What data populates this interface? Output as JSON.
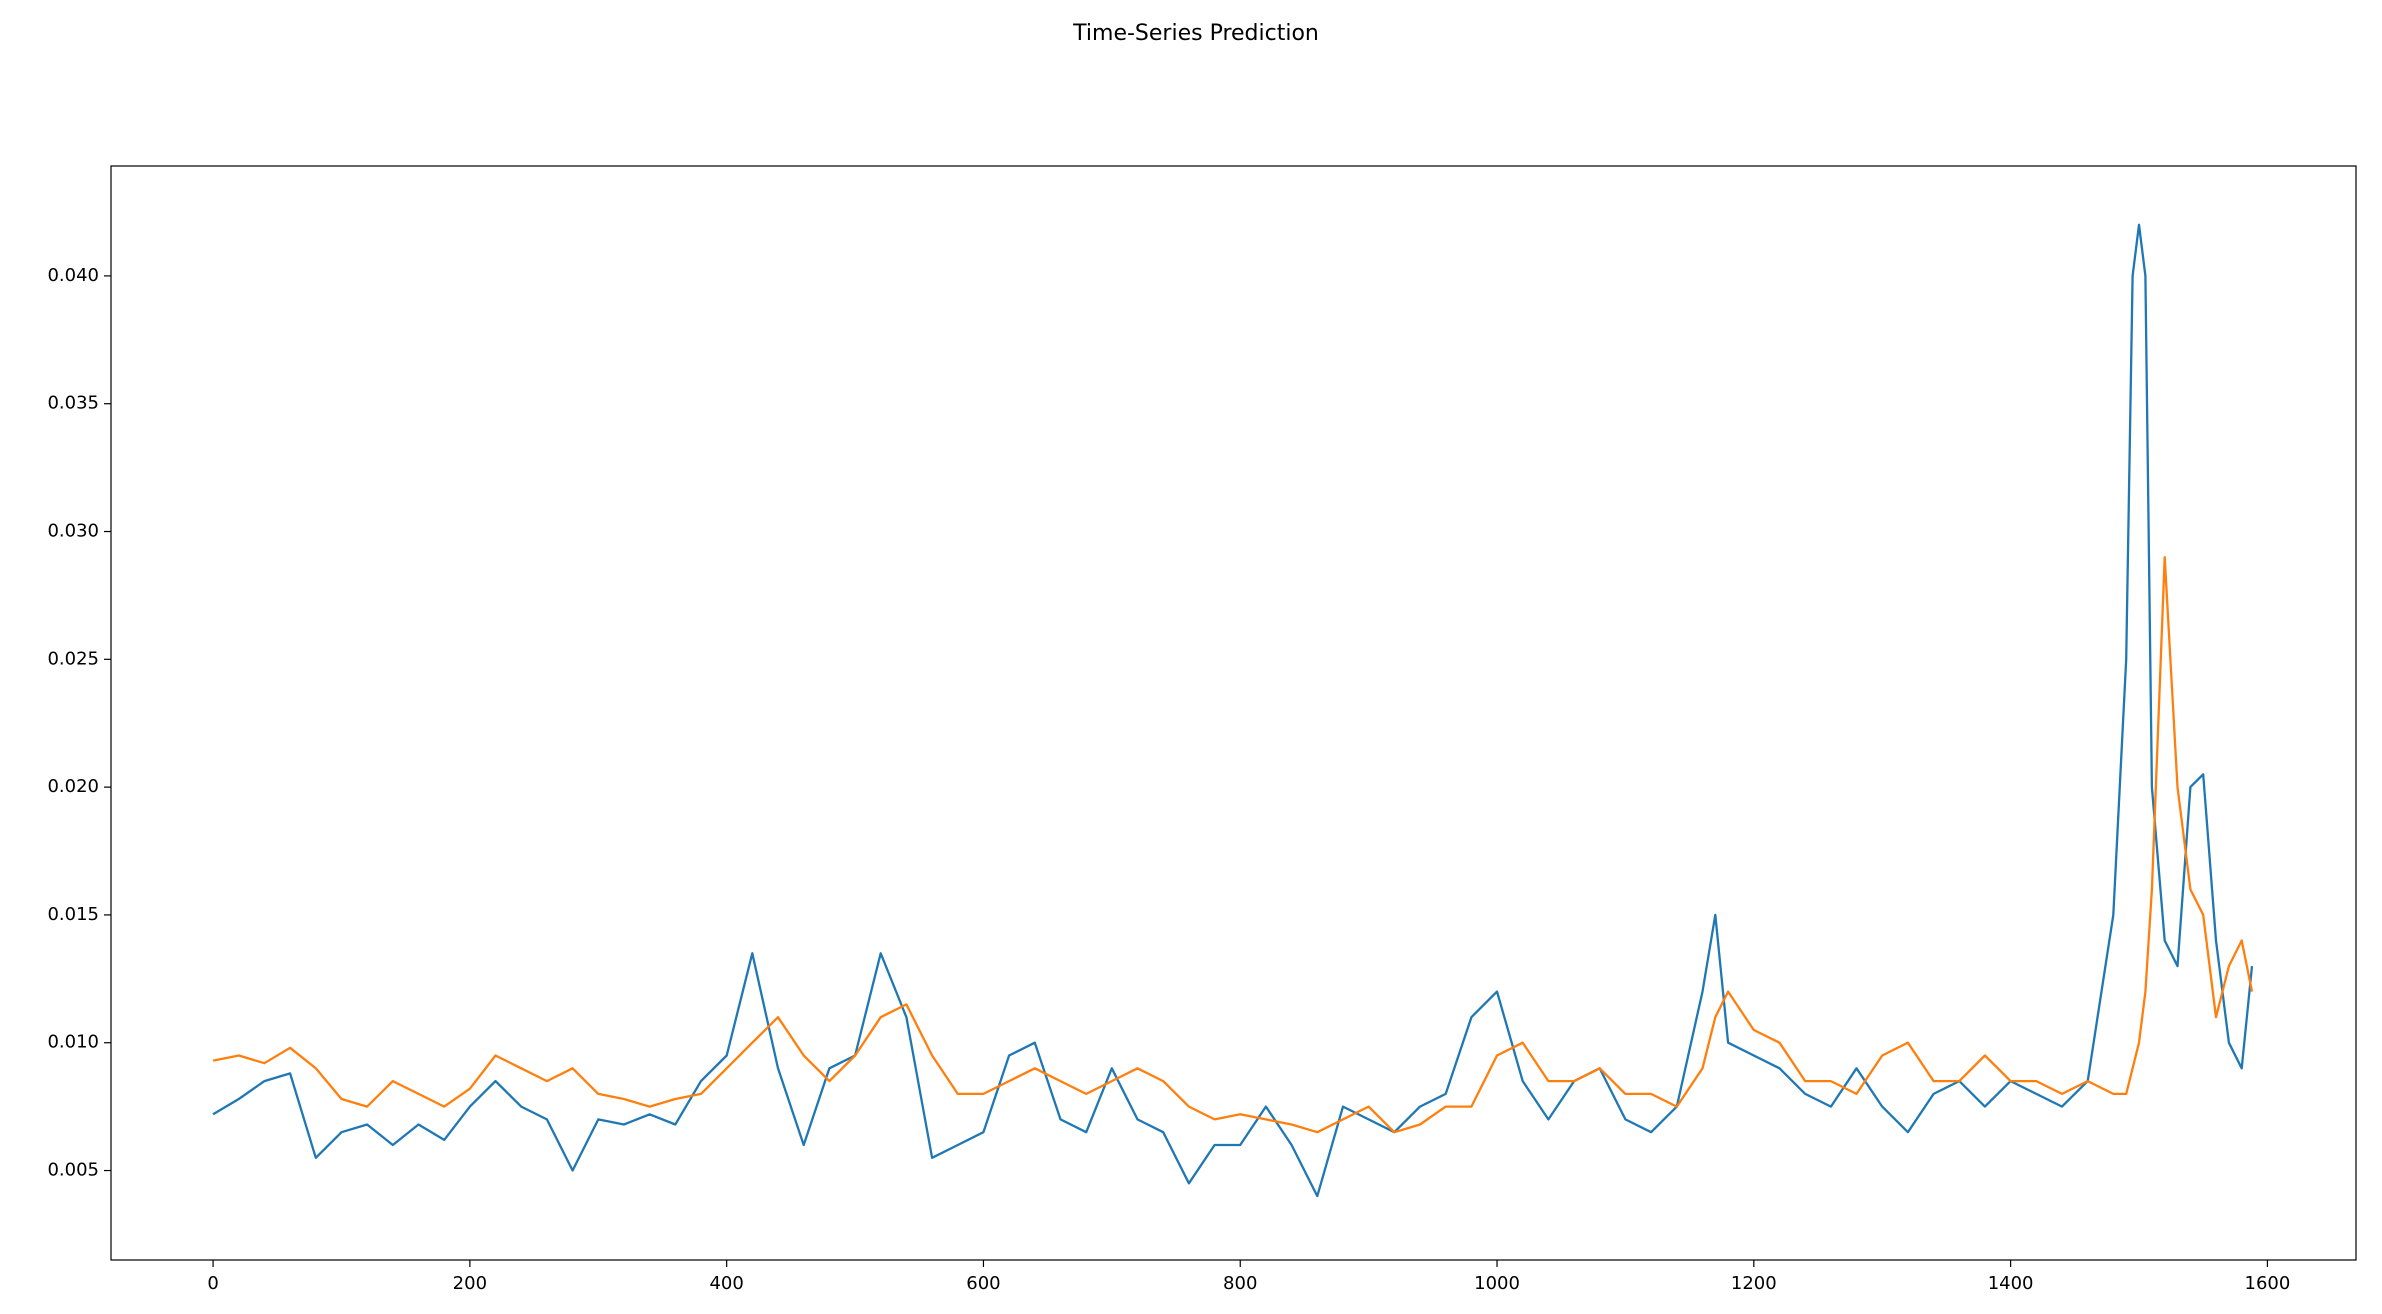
{
  "chart_data": {
    "type": "line",
    "title": "Time-Series Prediction",
    "x": [
      0,
      20,
      40,
      60,
      80,
      100,
      120,
      140,
      160,
      180,
      200,
      220,
      240,
      260,
      280,
      300,
      320,
      340,
      360,
      380,
      400,
      420,
      440,
      460,
      480,
      500,
      520,
      540,
      560,
      580,
      600,
      620,
      640,
      660,
      680,
      700,
      720,
      740,
      760,
      780,
      800,
      820,
      840,
      860,
      880,
      900,
      920,
      940,
      960,
      980,
      1000,
      1020,
      1040,
      1060,
      1080,
      1100,
      1120,
      1140,
      1160,
      1170,
      1180,
      1200,
      1220,
      1240,
      1260,
      1280,
      1300,
      1320,
      1340,
      1360,
      1380,
      1400,
      1420,
      1440,
      1460,
      1480,
      1490,
      1495,
      1500,
      1505,
      1510,
      1520,
      1530,
      1540,
      1550,
      1560,
      1570,
      1580,
      1588
    ],
    "series": [
      {
        "color": "#1f77b4",
        "values": [
          0.0072,
          0.0078,
          0.0085,
          0.0088,
          0.0055,
          0.0065,
          0.0068,
          0.006,
          0.0068,
          0.0062,
          0.0075,
          0.0085,
          0.0075,
          0.007,
          0.005,
          0.007,
          0.0068,
          0.0072,
          0.0068,
          0.0085,
          0.0095,
          0.0135,
          0.009,
          0.006,
          0.009,
          0.0095,
          0.0135,
          0.011,
          0.0055,
          0.006,
          0.0065,
          0.0095,
          0.01,
          0.007,
          0.0065,
          0.009,
          0.007,
          0.0065,
          0.0045,
          0.006,
          0.006,
          0.0075,
          0.006,
          0.004,
          0.0075,
          0.007,
          0.0065,
          0.0075,
          0.008,
          0.011,
          0.012,
          0.0085,
          0.007,
          0.0085,
          0.009,
          0.007,
          0.0065,
          0.0075,
          0.012,
          0.015,
          0.01,
          0.0095,
          0.009,
          0.008,
          0.0075,
          0.009,
          0.0075,
          0.0065,
          0.008,
          0.0085,
          0.0075,
          0.0085,
          0.008,
          0.0075,
          0.0085,
          0.015,
          0.025,
          0.04,
          0.042,
          0.04,
          0.02,
          0.014,
          0.013,
          0.02,
          0.0205,
          0.014,
          0.01,
          0.009,
          0.013
        ]
      },
      {
        "color": "#ff7f0e",
        "values": [
          0.0093,
          0.0095,
          0.0092,
          0.0098,
          0.009,
          0.0078,
          0.0075,
          0.0085,
          0.008,
          0.0075,
          0.0082,
          0.0095,
          0.009,
          0.0085,
          0.009,
          0.008,
          0.0078,
          0.0075,
          0.0078,
          0.008,
          0.009,
          0.01,
          0.011,
          0.0095,
          0.0085,
          0.0095,
          0.011,
          0.0115,
          0.0095,
          0.008,
          0.008,
          0.0085,
          0.009,
          0.0085,
          0.008,
          0.0085,
          0.009,
          0.0085,
          0.0075,
          0.007,
          0.0072,
          0.007,
          0.0068,
          0.0065,
          0.007,
          0.0075,
          0.0065,
          0.0068,
          0.0075,
          0.0075,
          0.0095,
          0.01,
          0.0085,
          0.0085,
          0.009,
          0.008,
          0.008,
          0.0075,
          0.009,
          0.011,
          0.012,
          0.0105,
          0.01,
          0.0085,
          0.0085,
          0.008,
          0.0095,
          0.01,
          0.0085,
          0.0085,
          0.0095,
          0.0085,
          0.0085,
          0.008,
          0.0085,
          0.008,
          0.008,
          0.009,
          0.01,
          0.012,
          0.016,
          0.029,
          0.02,
          0.016,
          0.015,
          0.011,
          0.013,
          0.014,
          0.012
        ]
      }
    ],
    "xlim": [
      -79.5,
      1669
    ],
    "ylim": [
      0.0015,
      0.0443
    ],
    "xticks": [
      0,
      200,
      400,
      600,
      800,
      1000,
      1200,
      1400,
      1600
    ],
    "yticks": [
      0.005,
      {
        "value": 0.01,
        "label": "0.010"
      },
      0.015,
      {
        "value": 0.02,
        "label": "0.020"
      },
      0.025,
      {
        "value": 0.03,
        "label": "0.030"
      },
      0.035,
      {
        "value": 0.04,
        "label": "0.040"
      }
    ]
  }
}
